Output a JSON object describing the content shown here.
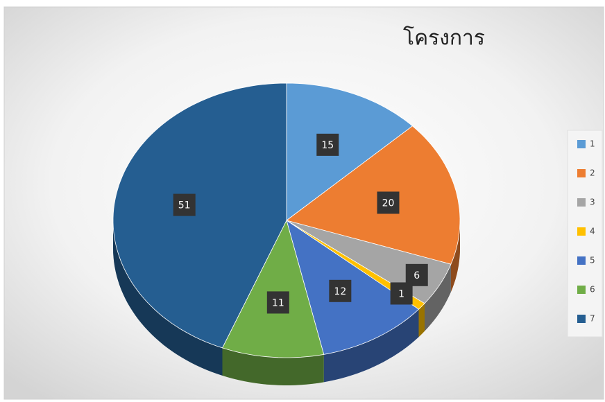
{
  "chart_data": {
    "type": "pie3d",
    "title": "โครงการ",
    "categories": [
      "1",
      "2",
      "3",
      "4",
      "5",
      "6",
      "7"
    ],
    "values": [
      15,
      20,
      6,
      1,
      12,
      11,
      51
    ],
    "colors": [
      "#5b9bd5",
      "#ed7d31",
      "#a5a5a5",
      "#ffc000",
      "#4472c4",
      "#70ad47",
      "#255e91"
    ],
    "legend": "right"
  }
}
